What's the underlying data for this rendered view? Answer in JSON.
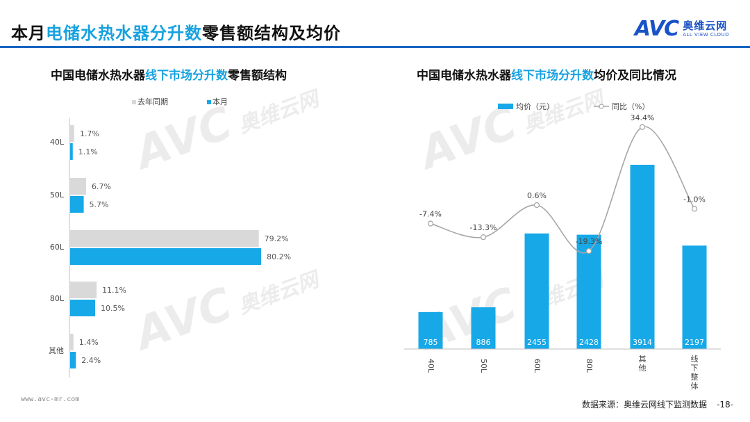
{
  "header": {
    "title_prefix": "本月",
    "title_highlight": "电储水热水器分升数",
    "title_suffix": "零售额结构及均价",
    "logo_text": "AVC",
    "logo_cn": "奥维云网",
    "logo_en": "ALL VIEW CLOUD"
  },
  "left_chart": {
    "title_prefix": "中国电储水热水器",
    "title_highlight": "线下市场分升数",
    "title_suffix": "零售额结构"
  },
  "right_chart": {
    "title_prefix": "中国电储水热水器",
    "title_highlight": "线下市场分升数",
    "title_suffix": "均价及同比情况"
  },
  "chart_data": [
    {
      "type": "bar",
      "orientation": "horizontal",
      "categories": [
        "40L",
        "50L",
        "60L",
        "80L",
        "其他"
      ],
      "series": [
        {
          "name": "去年同期",
          "values": [
            1.7,
            6.7,
            79.2,
            11.1,
            1.4
          ],
          "labels": [
            "1.7%",
            "6.7%",
            "79.2%",
            "11.1%",
            "1.4%"
          ],
          "color": "#d9d9d9"
        },
        {
          "name": "本月",
          "values": [
            1.1,
            5.7,
            80.2,
            10.5,
            2.4
          ],
          "labels": [
            "1.1%",
            "5.7%",
            "80.2%",
            "10.5%",
            "2.4%"
          ],
          "color": "#17a8e8"
        }
      ],
      "xlim": [
        0,
        100
      ],
      "legend_position": "top-left"
    },
    {
      "type": "bar",
      "categories": [
        "40L",
        "50L",
        "60L",
        "80L",
        "其他",
        "线下整体"
      ],
      "series": [
        {
          "name": "均价（元）",
          "type": "bar",
          "values": [
            785,
            886,
            2455,
            2428,
            3914,
            2197
          ],
          "color": "#17a8e8"
        },
        {
          "name": "同比（%）",
          "type": "line",
          "values": [
            -7.4,
            -13.3,
            0.6,
            -19.3,
            34.4,
            -1.0
          ],
          "labels": [
            "-7.4%",
            "-13.3%",
            "0.6%",
            "-19.3%",
            "34.4%",
            "-1.0%"
          ],
          "color": "#a6a6a6"
        }
      ],
      "ylim_bar": [
        0,
        4400
      ],
      "ylim_line": [
        -30,
        40
      ],
      "legend_position": "top"
    }
  ],
  "footer": {
    "website": "www.avc-mr.com",
    "source": "数据来源：奥维云网线下监测数据",
    "page": "-18-"
  },
  "watermark": {
    "logo": "AVC",
    "cn": "奥维云网",
    "en": "ALL VIEW CLOUD"
  }
}
